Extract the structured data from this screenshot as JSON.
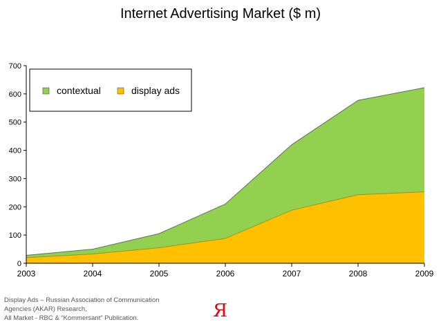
{
  "chart_data": {
    "type": "area",
    "title": "Internet Advertising Market ($ m)",
    "xlabel": "",
    "ylabel": "",
    "x": [
      "2003",
      "2004",
      "2005",
      "2006",
      "2007",
      "2008",
      "2009"
    ],
    "ylim": [
      0,
      700
    ],
    "yticks": [
      0,
      100,
      200,
      300,
      400,
      500,
      600,
      700
    ],
    "stacked": true,
    "grid": false,
    "legend_position": "top-left",
    "series": [
      {
        "name": "display ads",
        "values": [
          20,
          33,
          55,
          88,
          188,
          243,
          253
        ],
        "color": "#ffc000"
      },
      {
        "name": "contextual",
        "values": [
          8,
          17,
          50,
          122,
          232,
          334,
          369
        ],
        "color": "#92d050"
      }
    ]
  },
  "footer": {
    "source_lines": [
      "Display Ads – Russian Association of Communication",
      "Agencies (AKAR) Research,",
      "All Market -  RBC & “Kommersant” Publication."
    ],
    "logo_text": "Я"
  }
}
